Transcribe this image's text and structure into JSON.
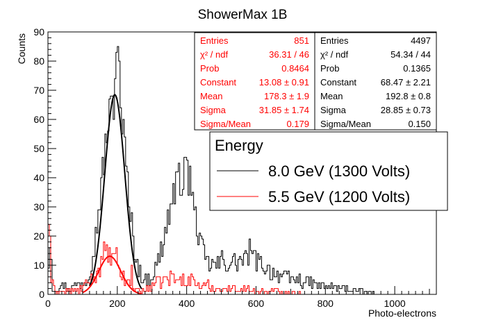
{
  "chart_data": {
    "type": "histogram",
    "title": "ShowerMax 1B",
    "xlabel": "Photo-electrons",
    "ylabel": "Counts",
    "xlim": [
      0,
      1120
    ],
    "ylim": [
      0,
      90
    ],
    "xticks": [
      0,
      200,
      400,
      600,
      800,
      1000
    ],
    "yticks": [
      0,
      10,
      20,
      30,
      40,
      50,
      60,
      70,
      80,
      90
    ],
    "bin_width": 4,
    "stats_boxes": [
      {
        "color": "#ff0000",
        "rows": [
          {
            "label": "Entries",
            "value": "851"
          },
          {
            "label": "χ² / ndf",
            "value": "36.31 / 46"
          },
          {
            "label": "Prob",
            "value": "0.8464"
          },
          {
            "label": "Constant",
            "value": "13.08 ± 0.91"
          },
          {
            "label": "Mean",
            "value": "178.3 ± 1.9"
          },
          {
            "label": "Sigma",
            "value": "31.85 ± 1.74"
          },
          {
            "label": "Sigma/Mean",
            "value": "0.179"
          }
        ]
      },
      {
        "color": "#000000",
        "rows": [
          {
            "label": "Entries",
            "value": "4497"
          },
          {
            "label": "χ² / ndf",
            "value": "54.34 / 44"
          },
          {
            "label": "Prob",
            "value": "0.1365"
          },
          {
            "label": "Constant",
            "value": "68.47 ± 2.21"
          },
          {
            "label": "Mean",
            "value": "192.8 ± 0.8"
          },
          {
            "label": "Sigma",
            "value": "28.85 ± 0.73"
          },
          {
            "label": "Sigma/Mean",
            "value": "0.150"
          }
        ]
      }
    ],
    "legend": {
      "title": "Energy",
      "placement": "top-right",
      "entries": [
        {
          "label": "8.0 GeV (1300 Volts)",
          "color": "#000000"
        },
        {
          "label": "5.5 GeV (1200 Volts)",
          "color": "#ff0000"
        }
      ]
    },
    "fits": [
      {
        "series": "8.0 GeV (1300 Volts)",
        "function": "gaus",
        "constant": 68.47,
        "mean": 192.8,
        "sigma": 28.85,
        "range": [
          120,
          270
        ],
        "color": "#000000"
      },
      {
        "series": "5.5 GeV (1200 Volts)",
        "function": "gaus",
        "constant": 13.08,
        "mean": 178.3,
        "sigma": 31.85,
        "range": [
          100,
          270
        ],
        "color": "#ff0000"
      }
    ],
    "series": [
      {
        "name": "8.0 GeV (1300 Volts)",
        "color": "#000000",
        "envelope": [
          [
            0,
            13
          ],
          [
            8,
            3
          ],
          [
            20,
            2
          ],
          [
            40,
            3
          ],
          [
            60,
            2
          ],
          [
            80,
            3
          ],
          [
            100,
            4
          ],
          [
            110,
            5
          ],
          [
            120,
            8
          ],
          [
            130,
            14
          ],
          [
            140,
            22
          ],
          [
            150,
            33
          ],
          [
            160,
            44
          ],
          [
            170,
            55
          ],
          [
            180,
            62
          ],
          [
            190,
            67
          ],
          [
            196,
            75
          ],
          [
            200,
            80
          ],
          [
            204,
            84
          ],
          [
            210,
            66
          ],
          [
            220,
            52
          ],
          [
            230,
            38
          ],
          [
            240,
            25
          ],
          [
            250,
            16
          ],
          [
            260,
            9
          ],
          [
            270,
            6
          ],
          [
            280,
            5
          ],
          [
            300,
            6
          ],
          [
            320,
            12
          ],
          [
            340,
            22
          ],
          [
            350,
            28
          ],
          [
            360,
            33
          ],
          [
            370,
            37
          ],
          [
            380,
            40
          ],
          [
            390,
            40
          ],
          [
            400,
            41
          ],
          [
            410,
            37
          ],
          [
            420,
            30
          ],
          [
            430,
            24
          ],
          [
            440,
            17
          ],
          [
            450,
            14
          ],
          [
            460,
            11
          ],
          [
            480,
            10
          ],
          [
            500,
            10
          ],
          [
            520,
            11
          ],
          [
            540,
            11
          ],
          [
            560,
            12
          ],
          [
            570,
            12
          ],
          [
            580,
            13
          ],
          [
            600,
            12
          ],
          [
            620,
            10
          ],
          [
            640,
            8
          ],
          [
            660,
            7
          ],
          [
            680,
            6
          ],
          [
            700,
            5
          ],
          [
            720,
            5
          ],
          [
            740,
            4
          ],
          [
            760,
            4
          ],
          [
            780,
            3
          ],
          [
            800,
            3
          ],
          [
            830,
            2
          ],
          [
            860,
            2
          ],
          [
            900,
            1
          ],
          [
            960,
            0
          ],
          [
            1120,
            0
          ]
        ],
        "spikes": [
          [
            4,
            16
          ],
          [
            8,
            12
          ],
          [
            196,
            83
          ],
          [
            200,
            85
          ],
          [
            204,
            80
          ],
          [
            236,
            25
          ],
          [
            364,
            31
          ],
          [
            372,
            42
          ],
          [
            392,
            47
          ],
          [
            400,
            46
          ],
          [
            408,
            44
          ],
          [
            580,
            19
          ],
          [
            500,
            15
          ]
        ]
      },
      {
        "name": "5.5 GeV (1200 Volts)",
        "color": "#ff0000",
        "envelope": [
          [
            0,
            22
          ],
          [
            8,
            5
          ],
          [
            20,
            1
          ],
          [
            40,
            1
          ],
          [
            60,
            1
          ],
          [
            80,
            1
          ],
          [
            100,
            2
          ],
          [
            120,
            4
          ],
          [
            140,
            7
          ],
          [
            150,
            9
          ],
          [
            160,
            12
          ],
          [
            170,
            13
          ],
          [
            180,
            13
          ],
          [
            190,
            12
          ],
          [
            200,
            10
          ],
          [
            210,
            8
          ],
          [
            220,
            5
          ],
          [
            230,
            4
          ],
          [
            240,
            3
          ],
          [
            250,
            2
          ],
          [
            270,
            1
          ],
          [
            300,
            3
          ],
          [
            320,
            4
          ],
          [
            340,
            5
          ],
          [
            360,
            5
          ],
          [
            380,
            5
          ],
          [
            400,
            5
          ],
          [
            420,
            4
          ],
          [
            440,
            3
          ],
          [
            460,
            3
          ],
          [
            480,
            2
          ],
          [
            500,
            2
          ],
          [
            520,
            2
          ],
          [
            560,
            2
          ],
          [
            600,
            1
          ],
          [
            660,
            1
          ],
          [
            700,
            1
          ],
          [
            740,
            0
          ],
          [
            1120,
            0
          ]
        ],
        "spikes": [
          [
            0,
            24
          ],
          [
            4,
            20
          ],
          [
            160,
            18
          ],
          [
            196,
            16
          ],
          [
            240,
            10
          ],
          [
            290,
            8
          ],
          [
            352,
            8
          ],
          [
            412,
            7
          ]
        ]
      }
    ]
  }
}
